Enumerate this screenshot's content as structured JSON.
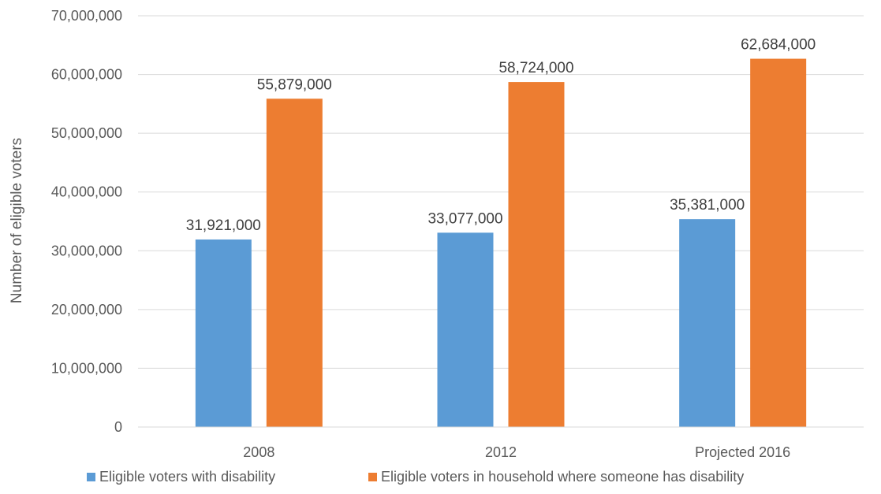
{
  "chart_data": {
    "type": "bar",
    "title": "",
    "xlabel": "",
    "ylabel": "Number of eligible voters",
    "categories": [
      "2008",
      "2012",
      "Projected 2016"
    ],
    "ylim": [
      0,
      70000000
    ],
    "yticks": [
      0,
      10000000,
      20000000,
      30000000,
      40000000,
      50000000,
      60000000,
      70000000
    ],
    "ytick_labels": [
      "0",
      "10,000,000",
      "20,000,000",
      "30,000,000",
      "40,000,000",
      "50,000,000",
      "60,000,000",
      "70,000,000"
    ],
    "grid": true,
    "legend_position": "bottom",
    "series": [
      {
        "name": "Eligible voters with disability",
        "color": "#5B9BD5",
        "values": [
          31921000,
          33077000,
          35381000
        ],
        "labels": [
          "31,921,000",
          "33,077,000",
          "35,381,000"
        ]
      },
      {
        "name": "Eligible voters in household where someone has disability",
        "color": "#ED7D31",
        "values": [
          55879000,
          58724000,
          62684000
        ],
        "labels": [
          "55,879,000",
          "58,724,000",
          "62,684,000"
        ]
      }
    ]
  }
}
